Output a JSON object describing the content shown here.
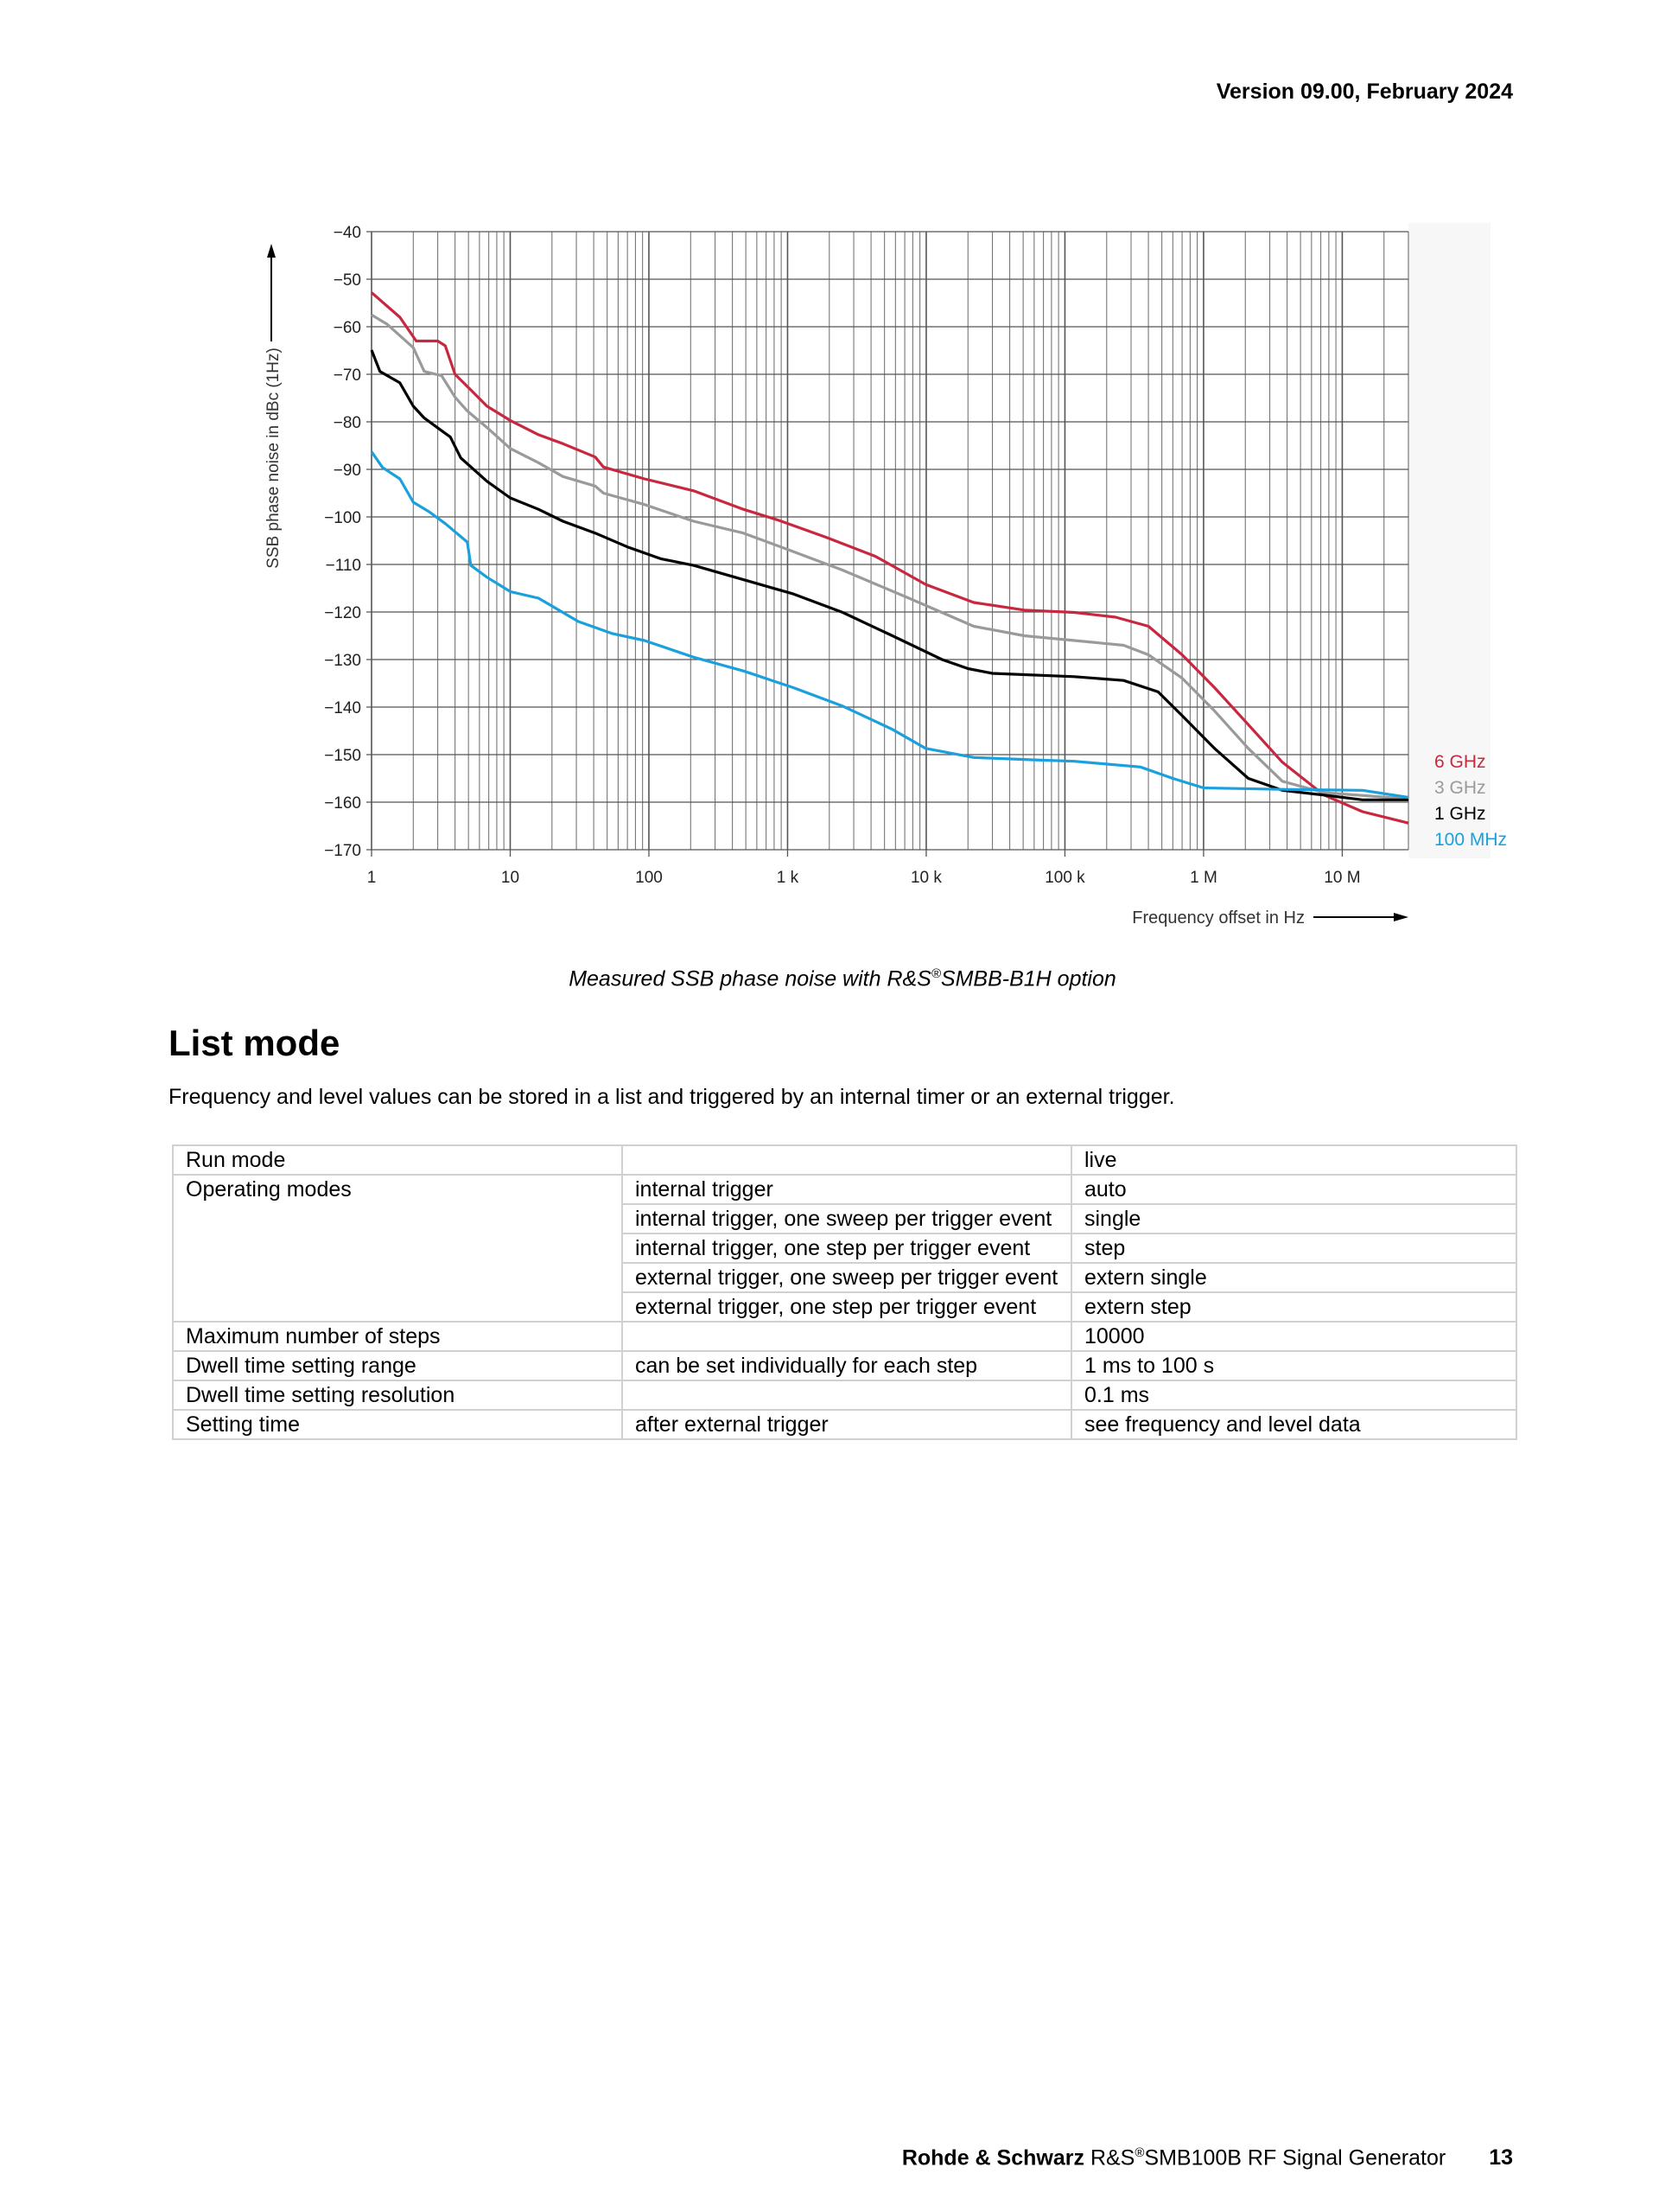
{
  "header": {
    "version": "Version 09.00, February 2024"
  },
  "chart_data": {
    "type": "line",
    "xscale": "log",
    "xlim": [
      1,
      30000000
    ],
    "ylim": [
      -170,
      -40
    ],
    "grid": true,
    "ylabel": "SSB phase noise in dBc (1Hz)",
    "xlabel": "Frequency offset in Hz",
    "yticks": [
      "−40",
      "−50",
      "−60",
      "−70",
      "−80",
      "−90",
      "−100",
      "−110",
      "−120",
      "−130",
      "−140",
      "−150",
      "−160",
      "−170"
    ],
    "ytick_values": [
      -40,
      -50,
      -60,
      -70,
      -80,
      -90,
      -100,
      -110,
      -120,
      -130,
      -140,
      -150,
      -160,
      -170
    ],
    "xticks": [
      "1",
      "10",
      "100",
      "1 k",
      "10 k",
      "100 k",
      "1 M",
      "10 M"
    ],
    "xtick_values": [
      1,
      10,
      100,
      1000,
      10000,
      100000,
      1000000,
      10000000
    ],
    "legend_placement": "right",
    "series": [
      {
        "name": "6 GHz",
        "color": "#c8283f",
        "points": [
          [
            1,
            -52.8
          ],
          [
            1.6,
            -58
          ],
          [
            2.1,
            -63
          ],
          [
            3,
            -63
          ],
          [
            3.4,
            -64
          ],
          [
            4,
            -70
          ],
          [
            5.2,
            -73.3
          ],
          [
            6.8,
            -76.7
          ],
          [
            10,
            -79.7
          ],
          [
            16,
            -82.7
          ],
          [
            24,
            -84.6
          ],
          [
            41,
            -87.4
          ],
          [
            47,
            -89.5
          ],
          [
            93,
            -92
          ],
          [
            210,
            -94.5
          ],
          [
            480,
            -98.4
          ],
          [
            840,
            -100.6
          ],
          [
            1900,
            -104.3
          ],
          [
            4300,
            -108.3
          ],
          [
            9900,
            -114.2
          ],
          [
            22000,
            -118
          ],
          [
            51000,
            -119.6
          ],
          [
            117000,
            -120.1
          ],
          [
            232000,
            -121.1
          ],
          [
            400000,
            -123
          ],
          [
            700000,
            -129
          ],
          [
            1200000,
            -135.9
          ],
          [
            2100000,
            -143.7
          ],
          [
            3700000,
            -151.6
          ],
          [
            7400000,
            -158.5
          ],
          [
            14000000,
            -162
          ],
          [
            30000000,
            -164.4
          ]
        ]
      },
      {
        "name": "3 GHz",
        "color": "#9a9a9a",
        "points": [
          [
            1,
            -57.5
          ],
          [
            1.3,
            -59.5
          ],
          [
            2,
            -64.4
          ],
          [
            2.4,
            -69.4
          ],
          [
            3.2,
            -70.3
          ],
          [
            4,
            -74.8
          ],
          [
            4.9,
            -77.7
          ],
          [
            6.8,
            -81.2
          ],
          [
            10,
            -85.6
          ],
          [
            16,
            -88.6
          ],
          [
            24,
            -91.5
          ],
          [
            41,
            -93.5
          ],
          [
            47,
            -95
          ],
          [
            93,
            -97.4
          ],
          [
            210,
            -100.9
          ],
          [
            480,
            -103.4
          ],
          [
            1100,
            -107.3
          ],
          [
            2500,
            -111.2
          ],
          [
            7500,
            -117.1
          ],
          [
            22000,
            -123
          ],
          [
            51000,
            -125
          ],
          [
            117000,
            -126
          ],
          [
            265000,
            -127
          ],
          [
            400000,
            -129
          ],
          [
            700000,
            -133.9
          ],
          [
            1200000,
            -140.8
          ],
          [
            2100000,
            -148.7
          ],
          [
            3700000,
            -155.6
          ],
          [
            7400000,
            -158
          ],
          [
            30000000,
            -159.3
          ]
        ]
      },
      {
        "name": "1 GHz",
        "color": "#000000",
        "points": [
          [
            1,
            -64.9
          ],
          [
            1.15,
            -69.4
          ],
          [
            1.6,
            -71.8
          ],
          [
            2,
            -76.7
          ],
          [
            2.4,
            -79.2
          ],
          [
            3.7,
            -83.2
          ],
          [
            4.4,
            -87.6
          ],
          [
            6.8,
            -92.5
          ],
          [
            10,
            -96
          ],
          [
            16,
            -98.4
          ],
          [
            24,
            -100.9
          ],
          [
            41,
            -103.4
          ],
          [
            70,
            -106.3
          ],
          [
            122,
            -108.8
          ],
          [
            210,
            -110.2
          ],
          [
            480,
            -113.2
          ],
          [
            1100,
            -116.2
          ],
          [
            2500,
            -120.1
          ],
          [
            5700,
            -125
          ],
          [
            13000,
            -130
          ],
          [
            20000,
            -131.9
          ],
          [
            30000,
            -132.9
          ],
          [
            117000,
            -133.6
          ],
          [
            265000,
            -134.4
          ],
          [
            470000,
            -136.8
          ],
          [
            700000,
            -141.8
          ],
          [
            1200000,
            -148.7
          ],
          [
            2100000,
            -155
          ],
          [
            3700000,
            -157.5
          ],
          [
            7400000,
            -158.5
          ],
          [
            14000000,
            -159.5
          ],
          [
            30000000,
            -159.5
          ]
        ]
      },
      {
        "name": "100 MHz",
        "color": "#1aa0dc",
        "points": [
          [
            1,
            -86.3
          ],
          [
            1.2,
            -89.6
          ],
          [
            1.6,
            -92
          ],
          [
            2,
            -96.9
          ],
          [
            2.6,
            -98.9
          ],
          [
            3.4,
            -101.4
          ],
          [
            4.9,
            -105.3
          ],
          [
            5.2,
            -110.2
          ],
          [
            6.8,
            -112.7
          ],
          [
            10,
            -115.7
          ],
          [
            16,
            -117.1
          ],
          [
            31,
            -122
          ],
          [
            54,
            -124.5
          ],
          [
            93,
            -126
          ],
          [
            210,
            -129.5
          ],
          [
            480,
            -132.4
          ],
          [
            1100,
            -135.9
          ],
          [
            2500,
            -139.8
          ],
          [
            5700,
            -144.7
          ],
          [
            9900,
            -148.7
          ],
          [
            22000,
            -150.6
          ],
          [
            58000,
            -151.1
          ],
          [
            117000,
            -151.4
          ],
          [
            350000,
            -152.6
          ],
          [
            600000,
            -155
          ],
          [
            1000000,
            -157
          ],
          [
            3700000,
            -157.3
          ],
          [
            14000000,
            -157.5
          ],
          [
            30000000,
            -159
          ]
        ]
      }
    ]
  },
  "caption": {
    "before": "Measured SSB phase noise with R&S",
    "reg": "®",
    "after": "SMBB-B1H option"
  },
  "section": {
    "title": "List mode",
    "description": "Frequency and level values can be stored in a list and triggered by an internal timer or an external trigger."
  },
  "table": {
    "run_mode": {
      "label": "Run mode",
      "detail": "",
      "value": "live"
    },
    "operating_modes": {
      "label": "Operating modes",
      "rows": [
        {
          "detail": "internal trigger",
          "value": "auto"
        },
        {
          "detail": "internal trigger, one sweep per trigger event",
          "value": "single"
        },
        {
          "detail": "internal trigger, one step per trigger event",
          "value": "step"
        },
        {
          "detail": "external trigger, one sweep per trigger event",
          "value": "extern single"
        },
        {
          "detail": "external trigger, one step per trigger event",
          "value": "extern step"
        }
      ]
    },
    "rows": [
      {
        "label": "Maximum number of steps",
        "detail": "",
        "value": "10000"
      },
      {
        "label": "Dwell time setting range",
        "detail": "can be set individually for each step",
        "value": "1 ms to 100 s"
      },
      {
        "label": "Dwell time setting resolution",
        "detail": "",
        "value": "0.1 ms"
      },
      {
        "label": "Setting time",
        "detail": "after external trigger",
        "value": "see frequency and level data"
      }
    ]
  },
  "footer": {
    "company": "Rohde & Schwarz",
    "brand": "R&S",
    "reg": "®",
    "product": "SMB100B RF Signal Generator",
    "page": "13"
  }
}
